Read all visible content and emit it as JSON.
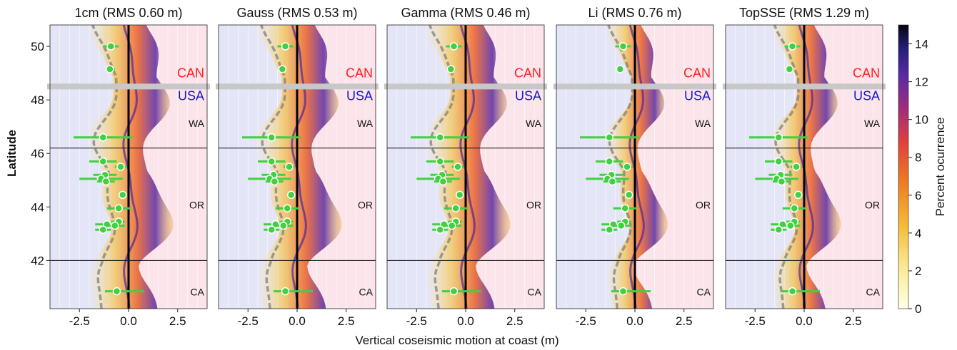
{
  "figure": {
    "ylabel": "Latitude",
    "xlabel": "Vertical coseismic motion at coast (m)",
    "colorbar_label": "Percent ocurrence",
    "colorbar_ticks": [
      "0",
      "2",
      "4",
      "6",
      "8",
      "10",
      "12",
      "14"
    ],
    "region_labels": {
      "can": "CAN",
      "usa": "USA",
      "wa": "WA",
      "or": "OR",
      "ca": "CA"
    },
    "colors": {
      "uplift_bg": "#fbe4ea",
      "subsidence_bg": "#e4e5f6",
      "can_label": "#ff1f1f",
      "usa_label": "#1717d6",
      "data_points": "#3fd13f",
      "divider": "#c8c8c8"
    }
  },
  "chart_data": [
    {
      "type": "heatmap",
      "title": "1cm (RMS 0.60 m)",
      "xlim": [
        -4,
        4
      ],
      "ylim": [
        40.2,
        50.8
      ],
      "xticks": [
        "-2.5",
        "0.0",
        "2.5"
      ],
      "yticks": [
        "42",
        "44",
        "46",
        "48",
        "50"
      ],
      "observations": [
        {
          "lat": 50.0,
          "x": -0.9,
          "xmin": -1.3,
          "xmax": -0.5
        },
        {
          "lat": 49.15,
          "x": -0.95,
          "xmin": -1.1,
          "xmax": -0.7
        },
        {
          "lat": 46.6,
          "x": -1.3,
          "xmin": -2.8,
          "xmax": 0.2
        },
        {
          "lat": 45.7,
          "x": -1.3,
          "xmin": -2.0,
          "xmax": -0.6
        },
        {
          "lat": 45.5,
          "x": -0.4,
          "xmin": -0.7,
          "xmax": -0.1
        },
        {
          "lat": 45.2,
          "x": -1.2,
          "xmin": -1.8,
          "xmax": -0.6
        },
        {
          "lat": 45.05,
          "x": -1.4,
          "xmin": -2.5,
          "xmax": -0.3
        },
        {
          "lat": 44.95,
          "x": -1.15,
          "xmin": -1.6,
          "xmax": -0.7
        },
        {
          "lat": 44.45,
          "x": -0.3,
          "xmin": -0.5,
          "xmax": -0.1
        },
        {
          "lat": 43.95,
          "x": -0.5,
          "xmin": -1.1,
          "xmax": 0.1
        },
        {
          "lat": 43.45,
          "x": -0.5,
          "xmin": -0.9,
          "xmax": -0.2
        },
        {
          "lat": 43.35,
          "x": -1.1,
          "xmin": -1.7,
          "xmax": -0.5
        },
        {
          "lat": 43.3,
          "x": -0.7,
          "xmin": -1.2,
          "xmax": -0.2
        },
        {
          "lat": 43.15,
          "x": -1.3,
          "xmin": -1.7,
          "xmax": -0.9
        },
        {
          "lat": 40.85,
          "x": -0.6,
          "xmin": -1.2,
          "xmax": 0.8
        }
      ]
    },
    {
      "type": "heatmap",
      "title": "Gauss (RMS 0.53 m)",
      "xlim": [
        -4,
        4
      ],
      "ylim": [
        40.2,
        50.8
      ],
      "xticks": [
        "-2.5",
        "0.0",
        "2.5"
      ],
      "yticks": [
        "42",
        "44",
        "46",
        "48",
        "50"
      ],
      "observations": [
        {
          "lat": 50.0,
          "x": -0.6,
          "xmin": -1.0,
          "xmax": -0.2
        },
        {
          "lat": 49.15,
          "x": -0.75,
          "xmin": -0.9,
          "xmax": -0.55
        },
        {
          "lat": 46.6,
          "x": -1.3,
          "xmin": -2.8,
          "xmax": 0.2
        },
        {
          "lat": 45.7,
          "x": -1.3,
          "xmin": -2.0,
          "xmax": -0.6
        },
        {
          "lat": 45.5,
          "x": -0.4,
          "xmin": -0.7,
          "xmax": -0.1
        },
        {
          "lat": 45.2,
          "x": -1.2,
          "xmin": -1.8,
          "xmax": -0.6
        },
        {
          "lat": 45.05,
          "x": -1.4,
          "xmin": -2.5,
          "xmax": -0.3
        },
        {
          "lat": 44.95,
          "x": -1.15,
          "xmin": -1.6,
          "xmax": -0.7
        },
        {
          "lat": 44.45,
          "x": -0.3,
          "xmin": -0.5,
          "xmax": -0.1
        },
        {
          "lat": 43.95,
          "x": -0.5,
          "xmin": -1.1,
          "xmax": 0.1
        },
        {
          "lat": 43.45,
          "x": -0.5,
          "xmin": -0.9,
          "xmax": -0.2
        },
        {
          "lat": 43.35,
          "x": -1.1,
          "xmin": -1.7,
          "xmax": -0.5
        },
        {
          "lat": 43.3,
          "x": -0.7,
          "xmin": -1.2,
          "xmax": -0.2
        },
        {
          "lat": 43.15,
          "x": -1.3,
          "xmin": -1.7,
          "xmax": -0.9
        },
        {
          "lat": 40.85,
          "x": -0.6,
          "xmin": -1.2,
          "xmax": 0.8
        }
      ]
    },
    {
      "type": "heatmap",
      "title": "Gamma (RMS 0.46 m)",
      "xlim": [
        -4,
        4
      ],
      "ylim": [
        40.2,
        50.8
      ],
      "xticks": [
        "-2.5",
        "0.0",
        "2.5"
      ],
      "yticks": [
        "42",
        "44",
        "46",
        "48",
        "50"
      ],
      "observations": [
        {
          "lat": 50.0,
          "x": -0.6,
          "xmin": -1.0,
          "xmax": -0.2
        },
        {
          "lat": 49.15,
          "x": -0.75,
          "xmin": -0.9,
          "xmax": -0.55
        },
        {
          "lat": 46.6,
          "x": -1.3,
          "xmin": -2.8,
          "xmax": 0.2
        },
        {
          "lat": 45.7,
          "x": -1.3,
          "xmin": -2.0,
          "xmax": -0.6
        },
        {
          "lat": 45.5,
          "x": -0.4,
          "xmin": -0.7,
          "xmax": -0.1
        },
        {
          "lat": 45.2,
          "x": -1.2,
          "xmin": -1.8,
          "xmax": -0.6
        },
        {
          "lat": 45.05,
          "x": -1.4,
          "xmin": -2.5,
          "xmax": -0.3
        },
        {
          "lat": 44.95,
          "x": -1.15,
          "xmin": -1.6,
          "xmax": -0.7
        },
        {
          "lat": 44.45,
          "x": -0.3,
          "xmin": -0.5,
          "xmax": -0.1
        },
        {
          "lat": 43.95,
          "x": -0.5,
          "xmin": -1.1,
          "xmax": 0.1
        },
        {
          "lat": 43.45,
          "x": -0.5,
          "xmin": -0.9,
          "xmax": -0.2
        },
        {
          "lat": 43.35,
          "x": -1.1,
          "xmin": -1.7,
          "xmax": -0.5
        },
        {
          "lat": 43.3,
          "x": -0.7,
          "xmin": -1.2,
          "xmax": -0.2
        },
        {
          "lat": 43.15,
          "x": -1.3,
          "xmin": -1.7,
          "xmax": -0.9
        },
        {
          "lat": 40.85,
          "x": -0.6,
          "xmin": -1.2,
          "xmax": 0.8
        }
      ]
    },
    {
      "type": "heatmap",
      "title": "Li (RMS 0.76 m)",
      "xlim": [
        -4,
        4
      ],
      "ylim": [
        40.2,
        50.8
      ],
      "xticks": [
        "-2.5",
        "0.0",
        "2.5"
      ],
      "yticks": [
        "42",
        "44",
        "46",
        "48",
        "50"
      ],
      "observations": [
        {
          "lat": 50.0,
          "x": -0.6,
          "xmin": -1.0,
          "xmax": -0.2
        },
        {
          "lat": 49.15,
          "x": -0.75,
          "xmin": -0.9,
          "xmax": -0.55
        },
        {
          "lat": 46.6,
          "x": -1.3,
          "xmin": -2.8,
          "xmax": 0.2
        },
        {
          "lat": 45.7,
          "x": -1.3,
          "xmin": -2.0,
          "xmax": -0.6
        },
        {
          "lat": 45.5,
          "x": -0.4,
          "xmin": -0.7,
          "xmax": -0.1
        },
        {
          "lat": 45.2,
          "x": -1.2,
          "xmin": -1.8,
          "xmax": -0.6
        },
        {
          "lat": 45.05,
          "x": -1.4,
          "xmin": -2.5,
          "xmax": -0.3
        },
        {
          "lat": 44.95,
          "x": -1.15,
          "xmin": -1.6,
          "xmax": -0.7
        },
        {
          "lat": 44.45,
          "x": -0.3,
          "xmin": -0.5,
          "xmax": -0.1
        },
        {
          "lat": 43.95,
          "x": -0.5,
          "xmin": -1.1,
          "xmax": 0.1
        },
        {
          "lat": 43.45,
          "x": -0.5,
          "xmin": -0.9,
          "xmax": -0.2
        },
        {
          "lat": 43.35,
          "x": -1.1,
          "xmin": -1.7,
          "xmax": -0.5
        },
        {
          "lat": 43.3,
          "x": -0.7,
          "xmin": -1.2,
          "xmax": -0.2
        },
        {
          "lat": 43.15,
          "x": -1.3,
          "xmin": -1.7,
          "xmax": -0.9
        },
        {
          "lat": 40.85,
          "x": -0.6,
          "xmin": -1.2,
          "xmax": 0.8
        }
      ]
    },
    {
      "type": "heatmap",
      "title": "TopSSE (RMS 1.29 m)",
      "xlim": [
        -4,
        4
      ],
      "ylim": [
        40.2,
        50.8
      ],
      "xticks": [
        "-2.5",
        "0.0",
        "2.5"
      ],
      "yticks": [
        "42",
        "44",
        "46",
        "48",
        "50"
      ],
      "observations": [
        {
          "lat": 50.0,
          "x": -0.6,
          "xmin": -1.0,
          "xmax": -0.2
        },
        {
          "lat": 49.15,
          "x": -0.75,
          "xmin": -0.9,
          "xmax": -0.55
        },
        {
          "lat": 46.6,
          "x": -1.3,
          "xmin": -2.8,
          "xmax": 0.2
        },
        {
          "lat": 45.7,
          "x": -1.3,
          "xmin": -2.0,
          "xmax": -0.6
        },
        {
          "lat": 45.5,
          "x": -0.4,
          "xmin": -0.7,
          "xmax": -0.1
        },
        {
          "lat": 45.2,
          "x": -1.2,
          "xmin": -1.8,
          "xmax": -0.6
        },
        {
          "lat": 45.05,
          "x": -1.4,
          "xmin": -2.5,
          "xmax": -0.3
        },
        {
          "lat": 44.95,
          "x": -1.15,
          "xmin": -1.6,
          "xmax": -0.7
        },
        {
          "lat": 44.45,
          "x": -0.3,
          "xmin": -0.5,
          "xmax": -0.1
        },
        {
          "lat": 43.95,
          "x": -0.5,
          "xmin": -1.1,
          "xmax": 0.1
        },
        {
          "lat": 43.45,
          "x": -0.5,
          "xmin": -0.9,
          "xmax": -0.2
        },
        {
          "lat": 43.35,
          "x": -1.1,
          "xmin": -1.7,
          "xmax": -0.5
        },
        {
          "lat": 43.3,
          "x": -0.7,
          "xmin": -1.2,
          "xmax": -0.2
        },
        {
          "lat": 43.15,
          "x": -1.3,
          "xmin": -1.7,
          "xmax": -0.9
        },
        {
          "lat": 40.85,
          "x": -0.6,
          "xmin": -1.2,
          "xmax": 0.8
        }
      ]
    }
  ]
}
